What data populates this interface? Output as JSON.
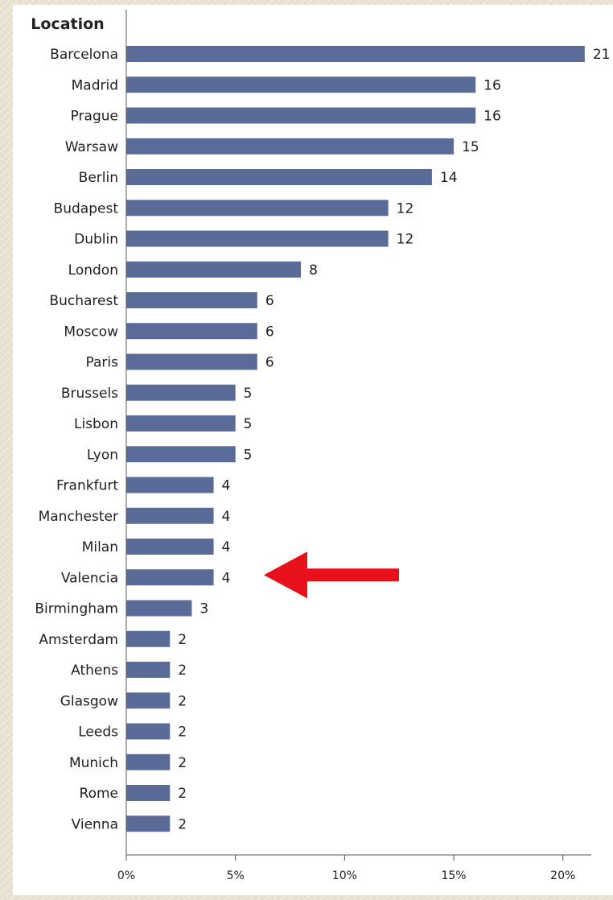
{
  "chart_data": {
    "type": "bar",
    "orientation": "horizontal",
    "category_header": "Location",
    "categories": [
      "Barcelona",
      "Madrid",
      "Prague",
      "Warsaw",
      "Berlin",
      "Budapest",
      "Dublin",
      "London",
      "Bucharest",
      "Moscow",
      "Paris",
      "Brussels",
      "Lisbon",
      "Lyon",
      "Frankfurt",
      "Manchester",
      "Milan",
      "Valencia",
      "Birmingham",
      "Amsterdam",
      "Athens",
      "Glasgow",
      "Leeds",
      "Munich",
      "Rome",
      "Vienna"
    ],
    "values": [
      21,
      16,
      16,
      15,
      14,
      12,
      12,
      8,
      6,
      6,
      6,
      5,
      5,
      5,
      4,
      4,
      4,
      4,
      3,
      2,
      2,
      2,
      2,
      2,
      2,
      2
    ],
    "value_labels": [
      "21",
      "16",
      "16",
      "15",
      "14",
      "12",
      "12",
      "8",
      "6",
      "6",
      "6",
      "5",
      "5",
      "5",
      "4",
      "4",
      "4",
      "4",
      "3",
      "2",
      "2",
      "2",
      "2",
      "2",
      "2",
      "2"
    ],
    "x_ticks": [
      "0%",
      "5%",
      "10%",
      "15%",
      "20%"
    ],
    "xlim": [
      0,
      21.3
    ],
    "grid": false,
    "bar_color": "#5b6b98",
    "annotation": {
      "type": "arrow",
      "color": "#e8101a",
      "points_to": "Valencia"
    }
  }
}
